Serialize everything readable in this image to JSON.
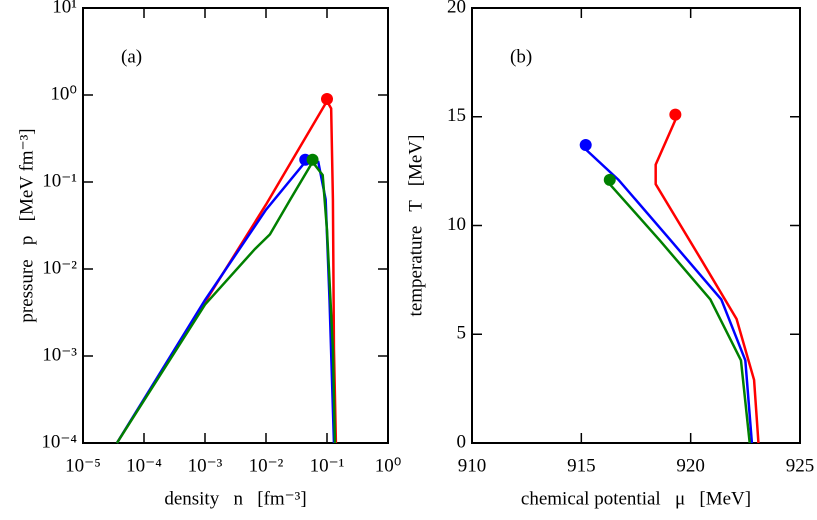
{
  "chart_data": [
    {
      "type": "line",
      "annotation": "(a)",
      "xlabel": "density   n   [fm⁻³]",
      "ylabel": "pressure   p   [MeV fm⁻³]",
      "xscale": "log",
      "yscale": "log",
      "xlim": [
        1e-05,
        1
      ],
      "ylim": [
        0.0001,
        10
      ],
      "xticks": [
        {
          "value": 1e-05,
          "label": "10⁻⁵"
        },
        {
          "value": 0.0001,
          "label": "10⁻⁴"
        },
        {
          "value": 0.001,
          "label": "10⁻³"
        },
        {
          "value": 0.01,
          "label": "10⁻²"
        },
        {
          "value": 0.1,
          "label": "10⁻¹"
        },
        {
          "value": 1,
          "label": "10⁰"
        }
      ],
      "yticks": [
        {
          "value": 0.0001,
          "label": "10⁻⁴"
        },
        {
          "value": 0.001,
          "label": "10⁻³"
        },
        {
          "value": 0.01,
          "label": "10⁻²"
        },
        {
          "value": 0.1,
          "label": "10⁻¹"
        },
        {
          "value": 1,
          "label": "10⁰"
        },
        {
          "value": 10,
          "label": "10¹"
        }
      ],
      "series": [
        {
          "color": "#ff0000",
          "x": [
            3.6e-05,
            0.01,
            0.1,
            0.117,
            0.125,
            0.13,
            0.14
          ],
          "values": [
            0.0001,
            0.055,
            0.85,
            0.7,
            0.063,
            0.0012,
            0.0001
          ],
          "marker_x": 0.1,
          "marker_y": 0.9
        },
        {
          "color": "#0000ff",
          "x": [
            3.6e-05,
            0.001,
            0.01,
            0.044,
            0.072,
            0.095,
            0.11,
            0.13
          ],
          "values": [
            0.0001,
            0.0044,
            0.048,
            0.17,
            0.17,
            0.063,
            0.0044,
            0.0001
          ],
          "marker_x": 0.044,
          "marker_y": 0.18
        },
        {
          "color": "#008000",
          "x": [
            3.6e-05,
            0.001,
            0.0066,
            0.0116,
            0.025,
            0.058,
            0.085,
            0.1,
            0.125,
            0.135
          ],
          "values": [
            0.0001,
            0.0039,
            0.017,
            0.025,
            0.063,
            0.17,
            0.12,
            0.028,
            0.0012,
            0.0001
          ],
          "marker_x": 0.058,
          "marker_y": 0.18
        }
      ]
    },
    {
      "type": "line",
      "annotation": "(b)",
      "xlabel": "chemical potential   μ   [MeV]",
      "ylabel": "temperature   T   [MeV]",
      "xlim": [
        910,
        925
      ],
      "ylim": [
        0,
        20
      ],
      "xticks": [
        910,
        915,
        920,
        925
      ],
      "yticks": [
        0,
        5,
        10,
        15,
        20
      ],
      "series": [
        {
          "color": "#ff0000",
          "x": [
            919.3,
            918.4,
            918.4,
            920.5,
            922.1,
            922.9,
            923.1
          ],
          "values": [
            14.85,
            12.8,
            11.9,
            8.4,
            5.7,
            2.9,
            0
          ],
          "marker_x": 919.3,
          "marker_y": 15.1
        },
        {
          "color": "#0000ff",
          "x": [
            915.2,
            916.7,
            919.1,
            921.4,
            922.5,
            922.8
          ],
          "values": [
            13.5,
            12.1,
            9.3,
            6.6,
            3.8,
            0
          ],
          "marker_x": 915.2,
          "marker_y": 13.7
        },
        {
          "color": "#008000",
          "x": [
            916.3,
            918.6,
            920.9,
            922.3,
            922.7
          ],
          "values": [
            11.9,
            9.3,
            6.6,
            3.8,
            0
          ],
          "marker_x": 916.3,
          "marker_y": 12.1
        }
      ]
    }
  ]
}
